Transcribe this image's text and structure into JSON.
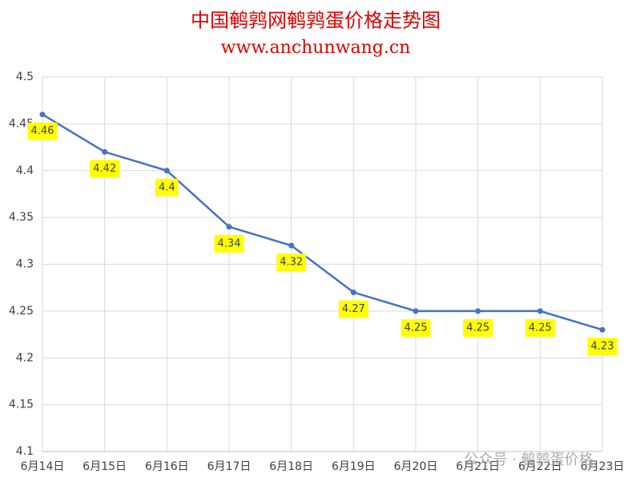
{
  "chart_data": {
    "type": "line",
    "title": "中国鹌鹑网鹌鹑蛋价格走势图",
    "subtitle": "www.anchunwang.cn",
    "categories": [
      "6月14日",
      "6月15日",
      "6月16日",
      "6月17日",
      "6月18日",
      "6月19日",
      "6月20日",
      "6月21日",
      "6月22日",
      "6月23日"
    ],
    "series": [
      {
        "name": "鹌鹑蛋价格",
        "color": "#4472c4",
        "values": [
          4.46,
          4.42,
          4.4,
          4.34,
          4.32,
          4.27,
          4.25,
          4.25,
          4.25,
          4.23
        ]
      }
    ],
    "ylim": [
      4.1,
      4.5
    ],
    "yticks": [
      4.1,
      4.15,
      4.2,
      4.25,
      4.3,
      4.35,
      4.4,
      4.45,
      4.5
    ],
    "grid": true,
    "label_bg": "#ffff00",
    "watermark": "公众号 · 鹌鹑蛋价格"
  }
}
